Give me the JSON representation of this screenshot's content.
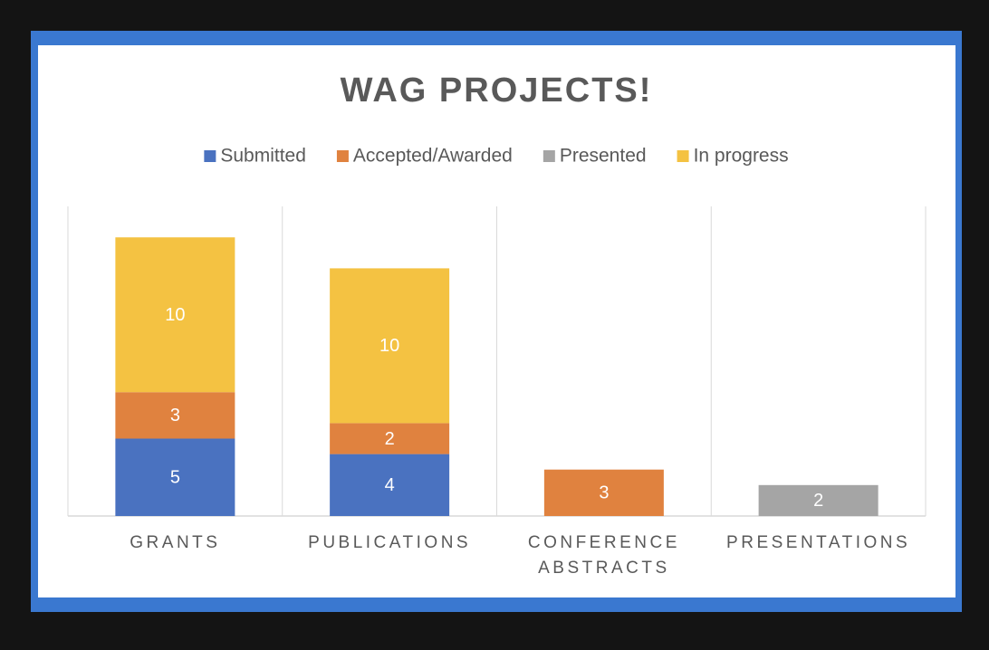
{
  "chart_data": {
    "type": "stacked-bar",
    "title": "WAG PROJECTS!",
    "categories": [
      "GRANTS",
      "PUBLICATIONS",
      "CONFERENCE ABSTRACTS",
      "PRESENTATIONS"
    ],
    "series": [
      {
        "name": "Submitted",
        "color": "#4a72c0",
        "values": [
          5,
          4,
          null,
          null
        ]
      },
      {
        "name": "Accepted/Awarded",
        "color": "#e0823f",
        "values": [
          3,
          2,
          3,
          null
        ]
      },
      {
        "name": "Presented",
        "color": "#a5a5a5",
        "values": [
          null,
          null,
          null,
          2
        ]
      },
      {
        "name": "In progress",
        "color": "#f4c242",
        "values": [
          10,
          10,
          null,
          null
        ]
      }
    ],
    "ylim": [
      0,
      20
    ],
    "legend": "top"
  }
}
